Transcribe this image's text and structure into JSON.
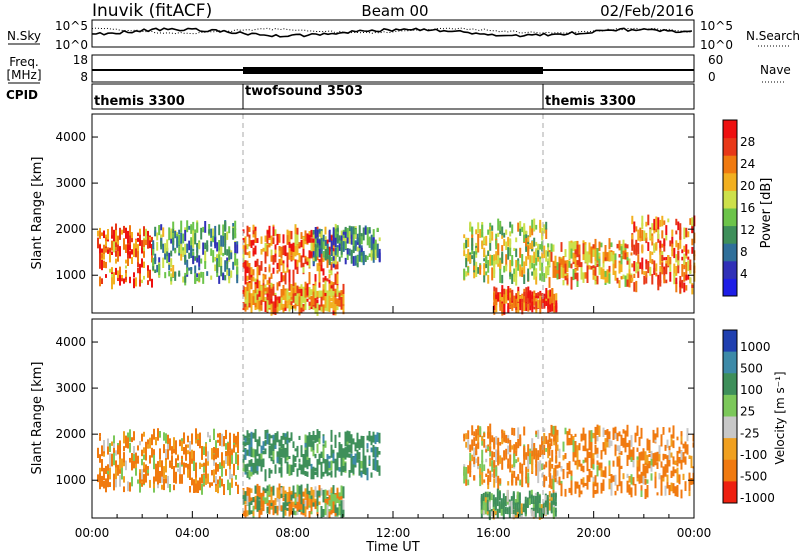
{
  "header": {
    "station": "Inuvik (fitACF)",
    "beam": "Beam 00",
    "date": "02/Feb/2016"
  },
  "noise_panel": {
    "left_label": "N.Sky",
    "right_label": "N.Search",
    "left_ticks": [
      "10^5",
      "10^0"
    ],
    "right_ticks": [
      "10^5",
      "10^0"
    ]
  },
  "freq_panel": {
    "left_label_1": "Freq.",
    "left_label_2": "[MHz]",
    "right_label": "Nave",
    "left_ticks": [
      "18",
      "8"
    ],
    "right_ticks": [
      "60",
      "0"
    ]
  },
  "cpid_panel": {
    "label": "CPID",
    "segments": [
      {
        "name": "themis 3300",
        "start_hour": 0,
        "end_hour": 6
      },
      {
        "name": "twofsound 3503",
        "start_hour": 6,
        "end_hour": 18
      },
      {
        "name": "themis 3300",
        "start_hour": 18,
        "end_hour": 24
      }
    ]
  },
  "power_panel": {
    "ylabel": "Slant Range [km]",
    "colorbar_label": "Power [dB]",
    "colorbar_ticks": [
      "28",
      "24",
      "20",
      "16",
      "12",
      "8",
      "4"
    ]
  },
  "velocity_panel": {
    "ylabel": "Slant Range [km]",
    "colorbar_label": "Velocity [m s⁻¹]",
    "colorbar_ticks": [
      "1000",
      "500",
      "100",
      "25",
      "-25",
      "-100",
      "-500",
      "-1000"
    ]
  },
  "x_axis": {
    "label": "Time UT",
    "tick_labels": [
      "00:00",
      "04:00",
      "08:00",
      "12:00",
      "16:00",
      "20:00",
      "00:00"
    ]
  },
  "chart_data": [
    {
      "type": "heatmap",
      "title": "Power",
      "xlabel": "Time UT",
      "ylabel": "Slant Range [km]",
      "x_range_hours": [
        0,
        24
      ],
      "ylim": [
        180,
        4500
      ],
      "y_tick_labels": [
        "1000",
        "2000",
        "3000",
        "4000"
      ],
      "y_ticks": [
        1000,
        2000,
        3000,
        4000
      ],
      "colorbar": {
        "label": "Power [dB]",
        "range": [
          0,
          32
        ],
        "ticks": [
          4,
          8,
          12,
          16,
          20,
          24,
          28
        ]
      },
      "scatter_regions": [
        {
          "t0": 0.2,
          "t1": 2.4,
          "r0": 800,
          "r1": 2000,
          "power_db": 26
        },
        {
          "t0": 2.4,
          "t1": 5.8,
          "r0": 900,
          "r1": 2100,
          "power_db": 12
        },
        {
          "t0": 6.0,
          "t1": 9.8,
          "r0": 700,
          "r1": 2000,
          "power_db": 26
        },
        {
          "t0": 6.0,
          "t1": 10.0,
          "r0": 250,
          "r1": 700,
          "power_db": 24
        },
        {
          "t0": 8.8,
          "t1": 11.5,
          "r0": 1300,
          "r1": 2000,
          "power_db": 10
        },
        {
          "t0": 14.8,
          "t1": 18.2,
          "r0": 900,
          "r1": 2100,
          "power_db": 18
        },
        {
          "t0": 16.0,
          "t1": 18.5,
          "r0": 250,
          "r1": 650,
          "power_db": 28
        },
        {
          "t0": 18.2,
          "t1": 21.5,
          "r0": 800,
          "r1": 1700,
          "power_db": 22
        },
        {
          "t0": 21.5,
          "t1": 24.0,
          "r0": 700,
          "r1": 2200,
          "power_db": 26
        }
      ]
    },
    {
      "type": "heatmap",
      "title": "Velocity",
      "xlabel": "Time UT",
      "ylabel": "Slant Range [km]",
      "x_range_hours": [
        0,
        24
      ],
      "ylim": [
        180,
        4500
      ],
      "y_tick_labels": [
        "1000",
        "2000",
        "3000",
        "4000"
      ],
      "y_ticks": [
        1000,
        2000,
        3000,
        4000
      ],
      "colorbar": {
        "label": "Velocity [m s⁻¹]",
        "ticks": [
          1000,
          500,
          100,
          25,
          -25,
          -100,
          -500,
          -1000
        ]
      },
      "scatter_regions": [
        {
          "t0": 0.2,
          "t1": 5.8,
          "r0": 800,
          "r1": 2000,
          "velocity": -150
        },
        {
          "t0": 6.0,
          "t1": 11.5,
          "r0": 1100,
          "r1": 2000,
          "velocity": 300
        },
        {
          "t0": 6.0,
          "t1": 10.0,
          "r0": 250,
          "r1": 800,
          "velocity": 0
        },
        {
          "t0": 14.8,
          "t1": 18.5,
          "r0": 900,
          "r1": 2100,
          "velocity": -150
        },
        {
          "t0": 15.5,
          "t1": 18.5,
          "r0": 250,
          "r1": 700,
          "velocity": 150
        },
        {
          "t0": 18.2,
          "t1": 24.0,
          "r0": 700,
          "r1": 2100,
          "velocity": -200
        }
      ]
    }
  ],
  "colors": {
    "power_scale": [
      "#1e1ee6",
      "#3030b8",
      "#2f6f9a",
      "#3e8f5a",
      "#6cc44a",
      "#cde04a",
      "#f2b020",
      "#f07a10",
      "#e83818",
      "#ee1010"
    ],
    "velocity_scale": [
      "#2040b0",
      "#3d8aa8",
      "#3e8f5a",
      "#7cc85a",
      "#c8c8c8",
      "#f0a020",
      "#f07a10",
      "#ee2010"
    ]
  }
}
